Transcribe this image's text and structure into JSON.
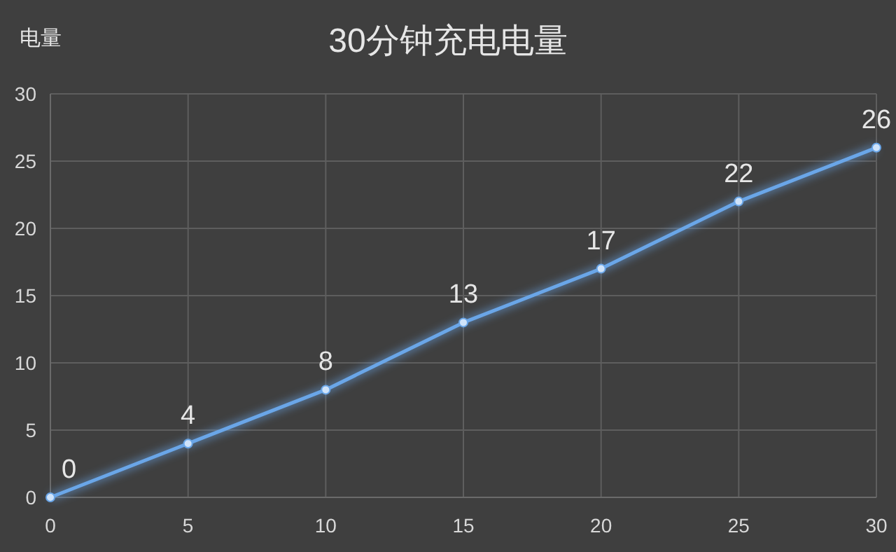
{
  "chart_data": {
    "type": "line",
    "title": "30分钟充电电量",
    "ylabel": "电量",
    "x": [
      0,
      5,
      10,
      15,
      20,
      25,
      30
    ],
    "series": [
      {
        "color": "#6aa6e8",
        "values": [
          0,
          4,
          8,
          13,
          17,
          22,
          26
        ]
      }
    ],
    "xlim": [
      0,
      30
    ],
    "xticks": [
      0,
      5,
      10,
      15,
      20,
      25,
      30
    ],
    "ylim": [
      0,
      30
    ],
    "yticks": [
      0,
      5,
      10,
      15,
      20,
      25,
      30
    ],
    "grid": true,
    "marker": "circle",
    "data_labels": true
  }
}
